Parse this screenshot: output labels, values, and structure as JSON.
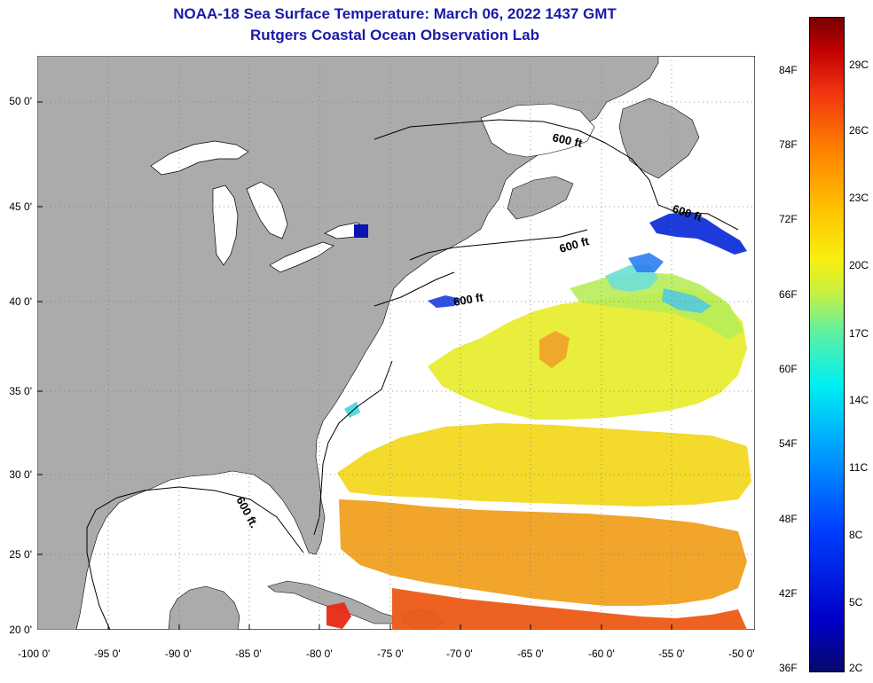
{
  "title": {
    "line1": "NOAA-18 Sea Surface Temperature:  March 06, 2022 1437 GMT",
    "line2": "Rutgers Coastal Ocean Observation Lab"
  },
  "latitude_labels": [
    "50 0'",
    "45 0'",
    "40 0'",
    "35 0'",
    "30 0'",
    "25 0'",
    "20 0'"
  ],
  "longitude_labels": [
    "-100 0'",
    "-95 0'",
    "-90 0'",
    "-85 0'",
    "-80 0'",
    "-75 0'",
    "-70 0'",
    "-65 0'",
    "-60 0'",
    "-55 0'",
    "-50 0'"
  ],
  "isobath_labels": [
    "600 ft",
    "600 ft",
    "600 ft",
    "600 ft",
    "600 ft."
  ],
  "colorbar": {
    "fahrenheit": [
      "84F",
      "78F",
      "72F",
      "66F",
      "60F",
      "54F",
      "48F",
      "42F",
      "36F"
    ],
    "celsius": [
      "29C",
      "26C",
      "23C",
      "20C",
      "17C",
      "14C",
      "11C",
      "8C",
      "5C",
      "2C"
    ]
  },
  "colors": {
    "land": "#ababab",
    "no_data": "#ffffff",
    "title": "#1a1aa8"
  }
}
